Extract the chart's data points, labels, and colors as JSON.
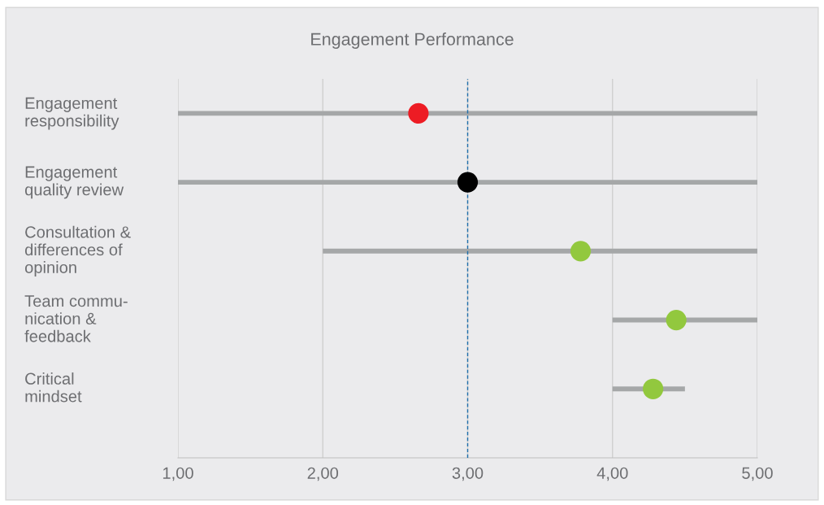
{
  "chart_data": {
    "type": "scatter",
    "orientation": "horizontal",
    "title": "Engagement Performance",
    "categories": [
      "Engagement\nresponsibility",
      "Engagement\nquality review",
      "Consultation &\ndifferences of\nopinion",
      "Team commu-\nnication &\nfeedback",
      "Critical\nmindset"
    ],
    "series": [
      {
        "type": "bar",
        "color": "#a5a7a8",
        "base": [
          1,
          1,
          2,
          4,
          4
        ],
        "values": [
          4,
          4,
          3,
          1,
          0.5
        ]
      },
      {
        "colors": [
          "#ed1c24",
          "#000000",
          "#92c83e",
          "#92c83e",
          "#92c83e"
        ],
        "values": [
          2.66,
          3.0,
          3.78,
          4.44,
          4.28
        ]
      }
    ],
    "xlim": [
      1,
      5
    ],
    "xticks": [
      {
        "value": 1,
        "label": "1,00"
      },
      {
        "value": 2,
        "label": "2,00"
      },
      {
        "value": 3,
        "label": "3,00"
      },
      {
        "value": 4,
        "label": "4,00"
      },
      {
        "value": 5,
        "label": "5,00"
      }
    ],
    "ref_lines": [
      {
        "axis": "x",
        "value": 3,
        "color": "#1f6fad",
        "line_style": "dashed"
      }
    ],
    "grid": "x",
    "marker": "circle"
  }
}
